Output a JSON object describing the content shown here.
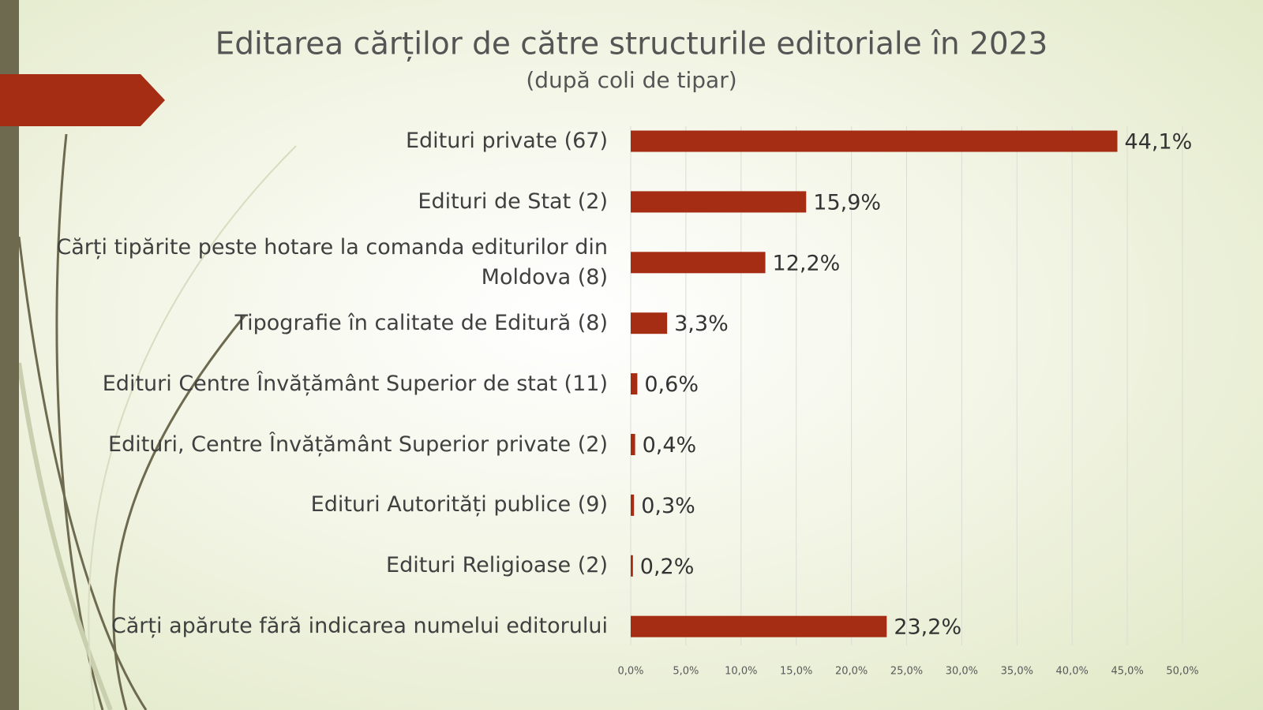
{
  "chart_data": {
    "type": "bar",
    "orientation": "horizontal",
    "title": "Editarea cărților de către structurile editoriale în 2023",
    "subtitle": "(după coli de tipar)",
    "categories": [
      "Edituri private (67)",
      "Edituri de Stat (2)",
      "Cărți tipărite peste hotare la comanda editurilor din Moldova (8)",
      "Tipografie în calitate de Editură (8)",
      "Edituri Centre Învățământ Superior de stat (11)",
      "Edituri, Centre Învățământ Superior private (2)",
      "Edituri Autorități publice (9)",
      "Edituri Religioase (2)",
      "Cărți apărute fără indicarea numelui editorului"
    ],
    "values": [
      44.1,
      15.9,
      12.2,
      3.3,
      0.6,
      0.4,
      0.3,
      0.2,
      23.2
    ],
    "value_labels": [
      "44,1%",
      "15,9%",
      "12,2%",
      "3,3%",
      "0,6%",
      "0,4%",
      "0,3%",
      "0,2%",
      "23,2%"
    ],
    "color": "#a52d14",
    "xlim": [
      0,
      50
    ],
    "xticks": [
      {
        "value": 0,
        "label": "0,0%"
      },
      {
        "value": 5,
        "label": "5,0%"
      },
      {
        "value": 10,
        "label": "10,0%"
      },
      {
        "value": 15,
        "label": "15,0%"
      },
      {
        "value": 20,
        "label": "20,0%"
      },
      {
        "value": 25,
        "label": "25,0%"
      },
      {
        "value": 30,
        "label": "30,0%"
      },
      {
        "value": 35,
        "label": "35,0%"
      },
      {
        "value": 40,
        "label": "40,0%"
      },
      {
        "value": 45,
        "label": "45,0%"
      },
      {
        "value": 50,
        "label": "50,0%"
      }
    ],
    "grid": true
  }
}
